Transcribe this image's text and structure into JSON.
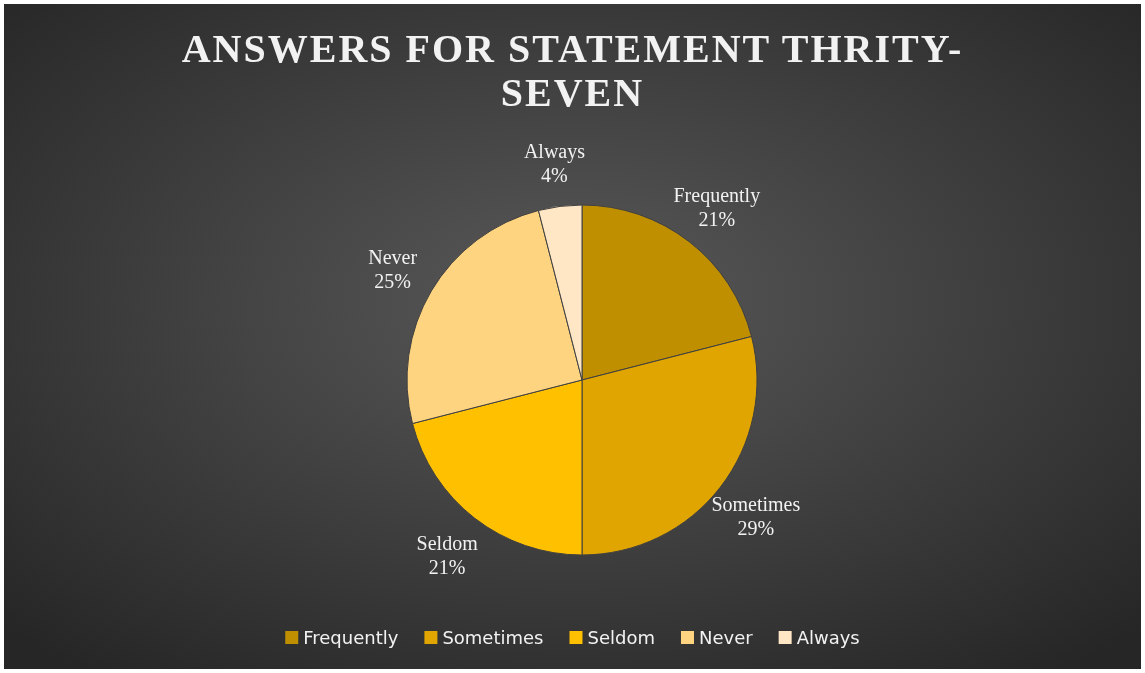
{
  "chart_data": {
    "type": "pie",
    "title": "ANSWERS FOR STATEMENT THRITY-SEVEN",
    "categories": [
      "Frequently",
      "Sometimes",
      "Seldom",
      "Never",
      "Always"
    ],
    "values": [
      21,
      29,
      21,
      25,
      4
    ],
    "value_labels": [
      "21%",
      "29%",
      "21%",
      "25%",
      "4%"
    ],
    "colors": [
      "#bf8f00",
      "#e0a500",
      "#ffc000",
      "#ffd480",
      "#ffe6c4"
    ],
    "legend": "bottom"
  }
}
